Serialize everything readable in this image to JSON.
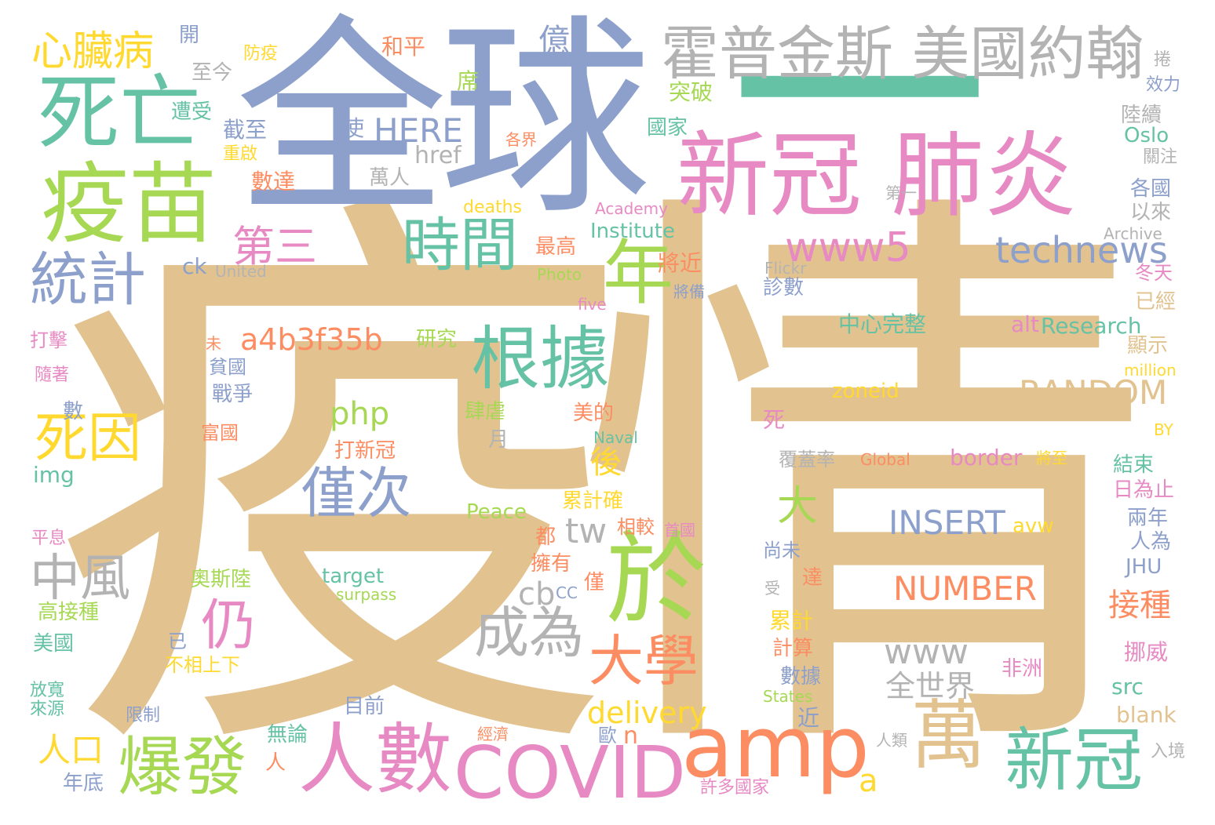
{
  "palette": {
    "tan": "#e2c390",
    "slate": "#8da0cb",
    "teal": "#66c2a5",
    "orange": "#fc8d62",
    "pink": "#e78ac3",
    "lime": "#a6d854",
    "yellow": "#ffd92f",
    "gray": "#b3b3b3"
  },
  "words": [
    {
      "text": "疫情",
      "color": "tan",
      "vertical": false
    },
    {
      "text": "全球",
      "color": "slate",
      "vertical": false
    },
    {
      "text": "一",
      "color": "teal",
      "vertical": false
    },
    {
      "text": "新冠 肺炎",
      "color": "pink",
      "vertical": false
    },
    {
      "text": "霍普金斯 美國約翰",
      "color": "gray",
      "vertical": false
    },
    {
      "text": "死亡",
      "color": "teal",
      "vertical": false
    },
    {
      "text": "疫苗",
      "color": "lime",
      "vertical": false
    },
    {
      "text": "心臟病",
      "color": "yellow",
      "vertical": false
    },
    {
      "text": "統計",
      "color": "slate",
      "vertical": false
    },
    {
      "text": "時間",
      "color": "teal",
      "vertical": false
    },
    {
      "text": "第三",
      "color": "pink",
      "vertical": false
    },
    {
      "text": "年",
      "color": "lime",
      "vertical": false
    },
    {
      "text": "根據",
      "color": "teal",
      "vertical": false
    },
    {
      "text": "於",
      "color": "lime",
      "vertical": false
    },
    {
      "text": "amp",
      "color": "orange",
      "vertical": false
    },
    {
      "text": "萬",
      "color": "tan",
      "vertical": false
    },
    {
      "text": "新冠",
      "color": "teal",
      "vertical": false
    },
    {
      "text": "人數",
      "color": "pink",
      "vertical": false
    },
    {
      "text": "COVID",
      "color": "pink",
      "vertical": false
    },
    {
      "text": "爆發",
      "color": "lime",
      "vertical": false
    },
    {
      "text": "僅次",
      "color": "slate",
      "vertical": false
    },
    {
      "text": "死因",
      "color": "yellow",
      "vertical": false
    },
    {
      "text": "中風",
      "color": "gray",
      "vertical": false
    },
    {
      "text": "仍",
      "color": "pink",
      "vertical": false
    },
    {
      "text": "成為",
      "color": "gray",
      "vertical": false
    },
    {
      "text": "大學",
      "color": "orange",
      "vertical": false
    },
    {
      "text": "www5",
      "color": "pink",
      "vertical": false
    },
    {
      "text": "technews",
      "color": "slate",
      "vertical": false
    },
    {
      "text": "a4b3f35b",
      "color": "orange",
      "vertical": false
    },
    {
      "text": "RANDOM",
      "color": "tan",
      "vertical": false
    },
    {
      "text": "INSERT",
      "color": "slate",
      "vertical": false
    },
    {
      "text": "NUMBER",
      "color": "orange",
      "vertical": false
    },
    {
      "text": "www",
      "color": "gray",
      "vertical": false
    },
    {
      "text": "HERE",
      "color": "slate",
      "vertical": false
    },
    {
      "text": "php",
      "color": "lime",
      "vertical": false
    },
    {
      "text": "tw",
      "color": "gray",
      "vertical": false
    },
    {
      "text": "cb",
      "color": "gray",
      "vertical": false
    },
    {
      "text": "大",
      "color": "lime",
      "vertical": false
    },
    {
      "text": "後",
      "color": "yellow",
      "vertical": false
    },
    {
      "text": "接種",
      "color": "orange",
      "vertical": false
    },
    {
      "text": "全世界",
      "color": "gray",
      "vertical": false
    },
    {
      "text": "delivery",
      "color": "yellow",
      "vertical": false
    },
    {
      "text": "a",
      "color": "yellow",
      "vertical": false
    },
    {
      "text": "n",
      "color": "orange",
      "vertical": false
    },
    {
      "text": "人口",
      "color": "yellow",
      "vertical": false
    },
    {
      "text": "億",
      "color": "slate",
      "vertical": false
    },
    {
      "text": "開",
      "color": "slate",
      "vertical": false
    },
    {
      "text": "防疫",
      "color": "yellow",
      "vertical": false
    },
    {
      "text": "和平",
      "color": "orange",
      "vertical": false
    },
    {
      "text": "至今",
      "color": "gray",
      "vertical": false
    },
    {
      "text": "席",
      "color": "lime",
      "vertical": false
    },
    {
      "text": "突破",
      "color": "lime",
      "vertical": false
    },
    {
      "text": "遭受",
      "color": "teal",
      "vertical": false
    },
    {
      "text": "截至",
      "color": "slate",
      "vertical": false
    },
    {
      "text": "使",
      "color": "slate",
      "vertical": false
    },
    {
      "text": "國家",
      "color": "teal",
      "vertical": false
    },
    {
      "text": "重啟",
      "color": "yellow",
      "vertical": false
    },
    {
      "text": "各界",
      "color": "orange",
      "vertical": false
    },
    {
      "text": "href",
      "color": "gray",
      "vertical": false
    },
    {
      "text": "數達",
      "color": "orange",
      "vertical": false
    },
    {
      "text": "萬人",
      "color": "gray",
      "vertical": false
    },
    {
      "text": "deaths",
      "color": "yellow",
      "vertical": false
    },
    {
      "text": "Academy",
      "color": "pink",
      "vertical": false
    },
    {
      "text": "Institute",
      "color": "teal",
      "vertical": false
    },
    {
      "text": "最高",
      "color": "orange",
      "vertical": false
    },
    {
      "text": "將近",
      "color": "orange",
      "vertical": false
    },
    {
      "text": "ck",
      "color": "slate",
      "vertical": false
    },
    {
      "text": "United",
      "color": "gray",
      "vertical": false
    },
    {
      "text": "Photo",
      "color": "lime",
      "vertical": false
    },
    {
      "text": "將備",
      "color": "slate",
      "vertical": false
    },
    {
      "text": "Flickr",
      "color": "gray",
      "vertical": false
    },
    {
      "text": "診數",
      "color": "slate",
      "vertical": false
    },
    {
      "text": "five",
      "color": "pink",
      "vertical": false
    },
    {
      "text": "研究",
      "color": "lime",
      "vertical": false
    },
    {
      "text": "中心完整",
      "color": "teal",
      "vertical": false
    },
    {
      "text": "alt",
      "color": "pink",
      "vertical": false
    },
    {
      "text": "Research",
      "color": "teal",
      "vertical": false
    },
    {
      "text": "貧國",
      "color": "slate",
      "vertical": false
    },
    {
      "text": "戰爭",
      "color": "slate",
      "vertical": false
    },
    {
      "text": "zoneid",
      "color": "yellow",
      "vertical": false
    },
    {
      "text": "肆虐",
      "color": "lime",
      "vertical": false
    },
    {
      "text": "美的",
      "color": "orange",
      "vertical": false
    },
    {
      "text": "富國",
      "color": "orange",
      "vertical": false
    },
    {
      "text": "死",
      "color": "pink",
      "vertical": false
    },
    {
      "text": "Naval",
      "color": "teal",
      "vertical": false
    },
    {
      "text": "月",
      "color": "gray",
      "vertical": false
    },
    {
      "text": "打新冠",
      "color": "orange",
      "vertical": false
    },
    {
      "text": "覆蓋率",
      "color": "gray",
      "vertical": false
    },
    {
      "text": "Global",
      "color": "orange",
      "vertical": false
    },
    {
      "text": "border",
      "color": "pink",
      "vertical": false
    },
    {
      "text": "將至",
      "color": "yellow",
      "vertical": false
    },
    {
      "text": "累計確",
      "color": "yellow",
      "vertical": false
    },
    {
      "text": "Peace",
      "color": "lime",
      "vertical": false
    },
    {
      "text": "相較",
      "color": "orange",
      "vertical": false
    },
    {
      "text": "首國",
      "color": "pink",
      "vertical": false
    },
    {
      "text": "都",
      "color": "orange",
      "vertical": false
    },
    {
      "text": "avw",
      "color": "yellow",
      "vertical": false
    },
    {
      "text": "尚未",
      "color": "slate",
      "vertical": false
    },
    {
      "text": "擁有",
      "color": "orange",
      "vertical": false
    },
    {
      "text": "奧斯陸",
      "color": "lime",
      "vertical": false
    },
    {
      "text": "target",
      "color": "teal",
      "vertical": false
    },
    {
      "text": "surpass",
      "color": "lime",
      "vertical": false
    },
    {
      "text": "僅",
      "color": "orange",
      "vertical": false
    },
    {
      "text": "CC",
      "color": "slate",
      "vertical": false
    },
    {
      "text": "達",
      "color": "orange",
      "vertical": false
    },
    {
      "text": "受",
      "color": "gray",
      "vertical": false
    },
    {
      "text": "累計",
      "color": "yellow",
      "vertical": false
    },
    {
      "text": "計算",
      "color": "orange",
      "vertical": false
    },
    {
      "text": "非洲",
      "color": "pink",
      "vertical": false
    },
    {
      "text": "數據",
      "color": "slate",
      "vertical": false
    },
    {
      "text": "States",
      "color": "lime",
      "vertical": false
    },
    {
      "text": "已",
      "color": "slate",
      "vertical": false
    },
    {
      "text": "不相上下",
      "color": "yellow",
      "vertical": false
    },
    {
      "text": "目前",
      "color": "slate",
      "vertical": false
    },
    {
      "text": "限制",
      "color": "slate",
      "vertical": false
    },
    {
      "text": "近",
      "color": "slate",
      "vertical": false
    },
    {
      "text": "無論",
      "color": "teal",
      "vertical": false
    },
    {
      "text": "經濟",
      "color": "orange",
      "vertical": false
    },
    {
      "text": "歐",
      "color": "slate",
      "vertical": false
    },
    {
      "text": "人類",
      "color": "gray",
      "vertical": false
    },
    {
      "text": "人",
      "color": "orange",
      "vertical": false
    },
    {
      "text": "年底",
      "color": "slate",
      "vertical": false
    },
    {
      "text": "許多國家",
      "color": "pink",
      "vertical": false
    },
    {
      "text": "入境",
      "color": "gray",
      "vertical": false
    },
    {
      "text": "src",
      "color": "teal",
      "vertical": false
    },
    {
      "text": "blank",
      "color": "tan",
      "vertical": false
    },
    {
      "text": "挪威",
      "color": "pink",
      "vertical": false
    },
    {
      "text": "JHU",
      "color": "slate",
      "vertical": false
    },
    {
      "text": "人為",
      "color": "slate",
      "vertical": false
    },
    {
      "text": "兩年",
      "color": "slate",
      "vertical": false
    },
    {
      "text": "日為止",
      "color": "pink",
      "vertical": false
    },
    {
      "text": "結束",
      "color": "teal",
      "vertical": false
    },
    {
      "text": "BY",
      "color": "yellow",
      "vertical": false
    },
    {
      "text": "million",
      "color": "yellow",
      "vertical": false
    },
    {
      "text": "顯示",
      "color": "tan",
      "vertical": false
    },
    {
      "text": "已經",
      "color": "tan",
      "vertical": false
    },
    {
      "text": "冬天",
      "color": "pink",
      "vertical": false
    },
    {
      "text": "Archive",
      "color": "gray",
      "vertical": false
    },
    {
      "text": "以來",
      "color": "gray",
      "vertical": false
    },
    {
      "text": "各國",
      "color": "slate",
      "vertical": false
    },
    {
      "text": "第一",
      "color": "gray",
      "vertical": false
    },
    {
      "text": "關注",
      "color": "gray",
      "vertical": false
    },
    {
      "text": "Oslo",
      "color": "teal",
      "vertical": false
    },
    {
      "text": "陸續",
      "color": "gray",
      "vertical": false
    },
    {
      "text": "效力",
      "color": "slate",
      "vertical": false
    },
    {
      "text": "捲",
      "color": "gray",
      "vertical": false
    },
    {
      "text": "打擊",
      "color": "pink",
      "vertical": false
    },
    {
      "text": "隨著",
      "color": "pink",
      "vertical": false
    },
    {
      "text": "未",
      "color": "orange",
      "vertical": false
    },
    {
      "text": "數",
      "color": "slate",
      "vertical": false
    },
    {
      "text": "img",
      "color": "teal",
      "vertical": false
    },
    {
      "text": "平息",
      "color": "pink",
      "vertical": false
    },
    {
      "text": "高接種",
      "color": "lime",
      "vertical": false
    },
    {
      "text": "美國",
      "color": "teal",
      "vertical": false
    },
    {
      "text": "放寬",
      "color": "teal",
      "vertical": false
    },
    {
      "text": "來源",
      "color": "teal",
      "vertical": false
    }
  ]
}
